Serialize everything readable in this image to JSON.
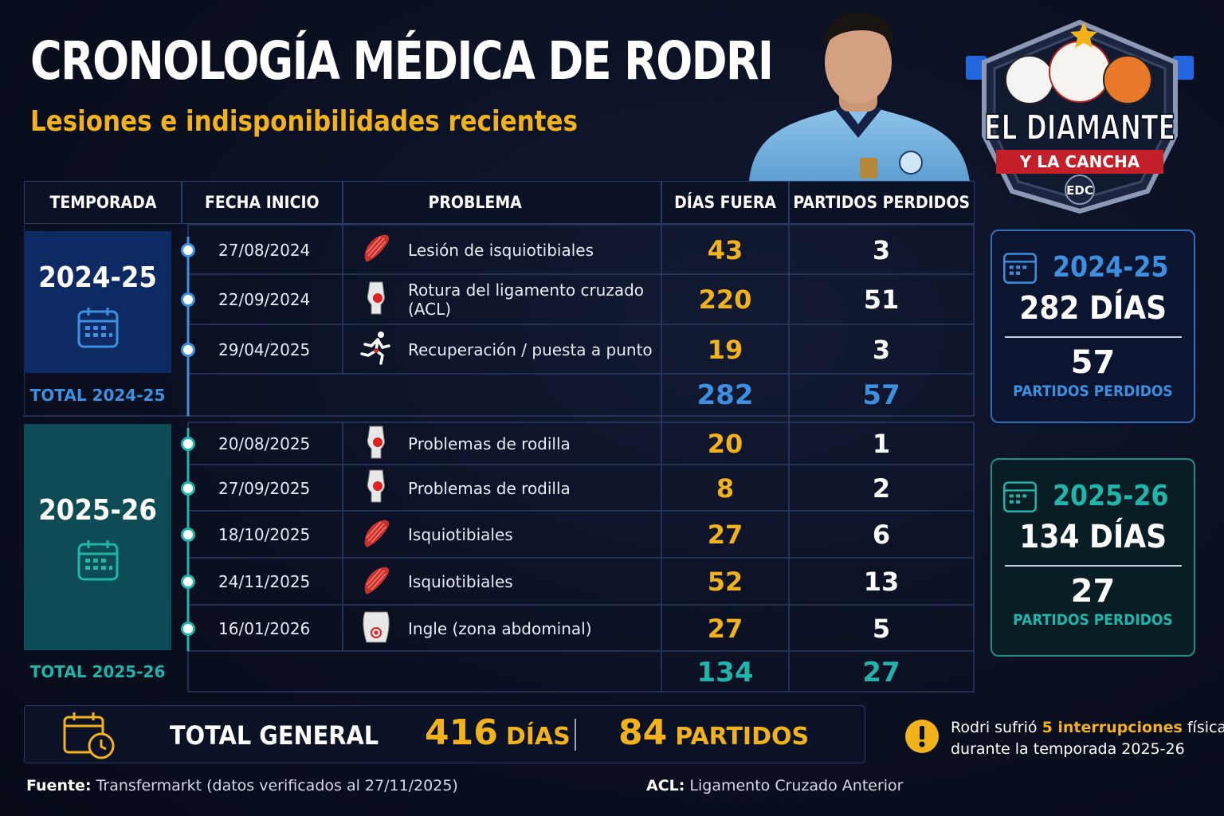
{
  "title": "CRONOLOGÍA MÉDICA DE RODRI",
  "subtitle": "Lesiones e indisponibilidades recientes",
  "logo": {
    "line1": "EL DIAMANTE",
    "line2": "Y LA CANCHA",
    "badge": "EDC"
  },
  "headers": {
    "season": "TEMPORADA",
    "start_date": "FECHA INICIO",
    "problem": "PROBLEMA",
    "days_out": "DÍAS FUERA",
    "matches_missed": "PARTIDOS PERDIDOS"
  },
  "seasons": [
    {
      "label": "2024-25",
      "total_label": "TOTAL 2024-25",
      "total_days": "282",
      "total_matches": "57",
      "rows": [
        {
          "date": "27/08/2024",
          "problem": "Lesión de isquiotibiales",
          "icon": "muscle-icon",
          "days": "43",
          "matches": "3"
        },
        {
          "date": "22/09/2024",
          "problem": "Rotura del ligamento cruzado (ACL)",
          "icon": "knee-icon",
          "days": "220",
          "matches": "51"
        },
        {
          "date": "29/04/2025",
          "problem": "Recuperación / puesta a punto",
          "icon": "runner-icon",
          "days": "19",
          "matches": "3"
        }
      ]
    },
    {
      "label": "2025-26",
      "total_label": "TOTAL 2025-26",
      "total_days": "134",
      "total_matches": "27",
      "rows": [
        {
          "date": "20/08/2025",
          "problem": "Problemas de rodilla",
          "icon": "knee-icon",
          "days": "20",
          "matches": "1"
        },
        {
          "date": "27/09/2025",
          "problem": "Problemas de rodilla",
          "icon": "knee-icon",
          "days": "8",
          "matches": "2"
        },
        {
          "date": "18/10/2025",
          "problem": "Isquiotibiales",
          "icon": "muscle-icon",
          "days": "27",
          "matches": "6"
        },
        {
          "date": "24/11/2025",
          "problem": "Isquiotibiales",
          "icon": "muscle-icon",
          "days": "52",
          "matches": "13"
        },
        {
          "date": "16/01/2026",
          "problem": "Ingle (zona abdominal)",
          "icon": "torso-icon",
          "days": "27",
          "matches": "5"
        }
      ]
    }
  ],
  "cards": [
    {
      "season": "2024-25",
      "days": "282 DÍAS",
      "matches": "57",
      "matches_label": "PARTIDOS PERDIDOS",
      "color": "#3d8fe0"
    },
    {
      "season": "2025-26",
      "days": "134 DÍAS",
      "matches": "27",
      "matches_label": "PARTIDOS PERDIDOS",
      "color": "#1fb5aa"
    }
  ],
  "total_general": {
    "label": "TOTAL GENERAL",
    "days_value": "416",
    "days_unit": "DÍAS",
    "matches_value": "84",
    "matches_unit": "PARTIDOS"
  },
  "note": {
    "part1": "Rodri sufrió ",
    "highlight": "5 interrupciones",
    "part2": " físicas",
    "line2": "durante la temporada 2025-26"
  },
  "footer": {
    "source_label": "Fuente:",
    "source_text": " Transfermarkt (datos verificados al 27/11/2025)",
    "acl_label": "ACL:",
    "acl_text": " Ligamento Cruzado Anterior"
  },
  "colors": {
    "accent_yellow": "#f2b21c",
    "season1": "#3d8fe0",
    "season2": "#1fb5aa"
  }
}
